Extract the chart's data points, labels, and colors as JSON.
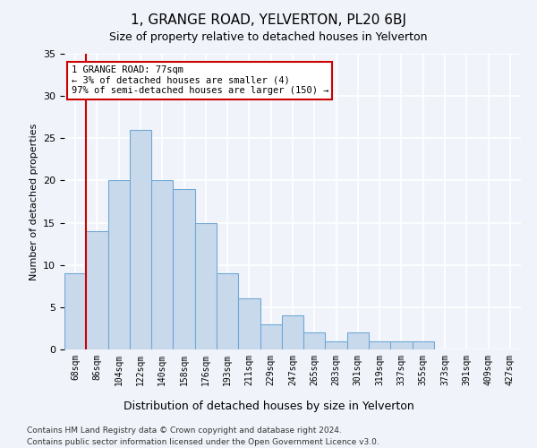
{
  "title": "1, GRANGE ROAD, YELVERTON, PL20 6BJ",
  "subtitle": "Size of property relative to detached houses in Yelverton",
  "xlabel": "Distribution of detached houses by size in Yelverton",
  "ylabel": "Number of detached properties",
  "bin_labels": [
    "68sqm",
    "86sqm",
    "104sqm",
    "122sqm",
    "140sqm",
    "158sqm",
    "176sqm",
    "193sqm",
    "211sqm",
    "229sqm",
    "247sqm",
    "265sqm",
    "283sqm",
    "301sqm",
    "319sqm",
    "337sqm",
    "355sqm",
    "373sqm",
    "391sqm",
    "409sqm",
    "427sqm"
  ],
  "values": [
    9,
    14,
    20,
    26,
    20,
    19,
    15,
    9,
    6,
    3,
    4,
    2,
    1,
    2,
    1,
    1,
    1,
    0,
    0,
    0,
    0
  ],
  "bar_color": "#c9d9ec",
  "bar_edge_color": "#6fa8d6",
  "ylim": [
    0,
    35
  ],
  "yticks": [
    0,
    5,
    10,
    15,
    20,
    25,
    30,
    35
  ],
  "annotation_line1": "1 GRANGE ROAD: 77sqm",
  "annotation_line2": "← 3% of detached houses are smaller (4)",
  "annotation_line3": "97% of semi-detached houses are larger (150) →",
  "vline_color": "#cc0000",
  "annotation_box_color": "#ffffff",
  "annotation_box_edge": "#cc0000",
  "footer_line1": "Contains HM Land Registry data © Crown copyright and database right 2024.",
  "footer_line2": "Contains public sector information licensed under the Open Government Licence v3.0.",
  "background_color": "#f0f4fa",
  "grid_color": "#ffffff"
}
